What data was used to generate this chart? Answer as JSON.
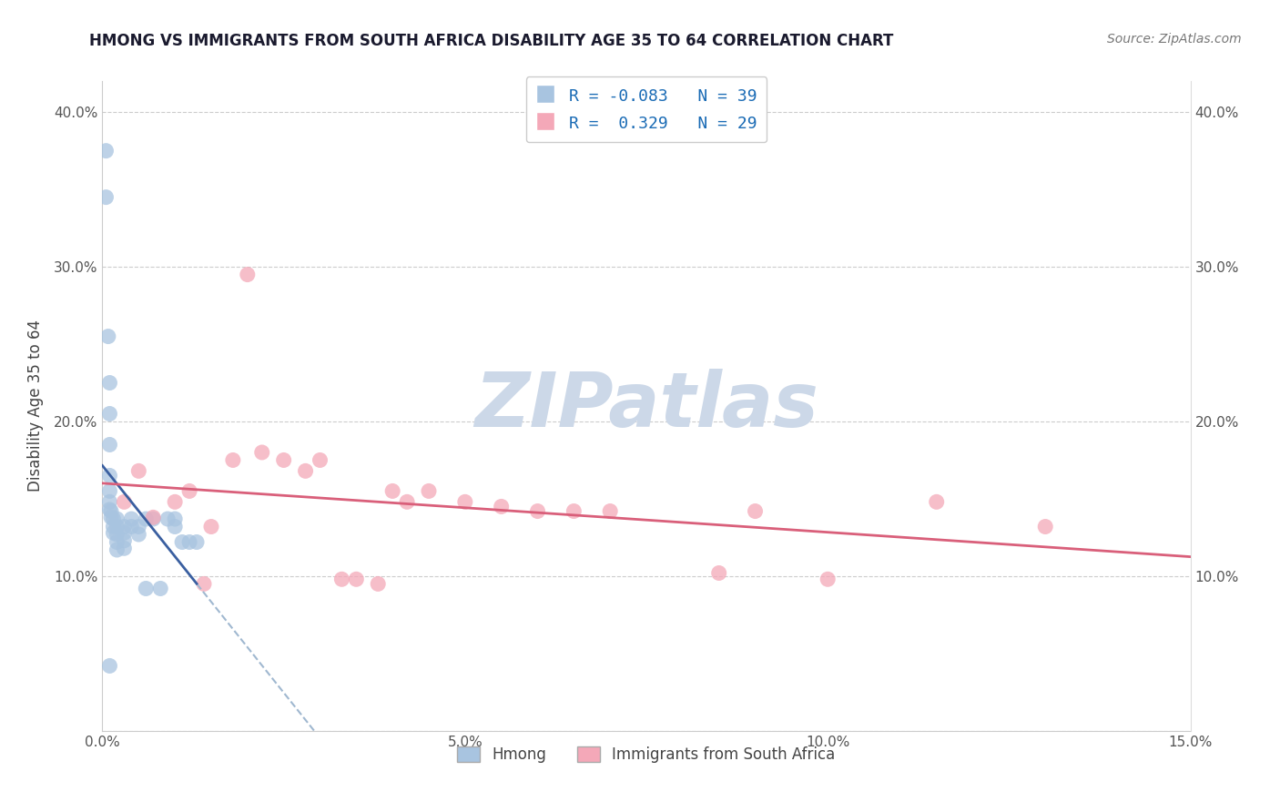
{
  "title": "HMONG VS IMMIGRANTS FROM SOUTH AFRICA DISABILITY AGE 35 TO 64 CORRELATION CHART",
  "source_text": "Source: ZipAtlas.com",
  "ylabel": "Disability Age 35 to 64",
  "xlim": [
    0.0,
    0.15
  ],
  "ylim": [
    0.0,
    0.42
  ],
  "xticks": [
    0.0,
    0.05,
    0.1,
    0.15
  ],
  "xticklabels": [
    "0.0%",
    "5.0%",
    "10.0%",
    "15.0%"
  ],
  "yticks": [
    0.0,
    0.1,
    0.2,
    0.3,
    0.4
  ],
  "yticklabels": [
    "",
    "10.0%",
    "20.0%",
    "30.0%",
    "40.0%"
  ],
  "r_hmong": -0.083,
  "n_hmong": 39,
  "r_sa": 0.329,
  "n_sa": 29,
  "legend_label1": "Hmong",
  "legend_label2": "Immigrants from South Africa",
  "hmong_color": "#a8c4e0",
  "sa_color": "#f4a8b8",
  "hmong_line_color": "#3a5fa0",
  "sa_line_color": "#d95f7a",
  "dashed_line_color": "#a0b8d0",
  "background_color": "#ffffff",
  "watermark": "ZIPatlas",
  "watermark_color": "#ccd8e8",
  "hmong_x": [
    0.0005,
    0.0005,
    0.0008,
    0.001,
    0.001,
    0.001,
    0.001,
    0.001,
    0.001,
    0.001,
    0.0012,
    0.0012,
    0.0015,
    0.0015,
    0.0015,
    0.002,
    0.002,
    0.002,
    0.002,
    0.002,
    0.003,
    0.003,
    0.003,
    0.003,
    0.004,
    0.004,
    0.005,
    0.005,
    0.006,
    0.006,
    0.007,
    0.008,
    0.009,
    0.01,
    0.01,
    0.011,
    0.012,
    0.013,
    0.001
  ],
  "hmong_y": [
    0.375,
    0.345,
    0.255,
    0.225,
    0.205,
    0.185,
    0.165,
    0.155,
    0.148,
    0.143,
    0.142,
    0.138,
    0.137,
    0.132,
    0.128,
    0.137,
    0.132,
    0.127,
    0.122,
    0.117,
    0.132,
    0.128,
    0.123,
    0.118,
    0.137,
    0.132,
    0.132,
    0.127,
    0.092,
    0.137,
    0.137,
    0.092,
    0.137,
    0.137,
    0.132,
    0.122,
    0.122,
    0.122,
    0.042
  ],
  "sa_x": [
    0.003,
    0.005,
    0.007,
    0.01,
    0.012,
    0.014,
    0.015,
    0.018,
    0.02,
    0.022,
    0.025,
    0.028,
    0.03,
    0.033,
    0.035,
    0.038,
    0.04,
    0.042,
    0.045,
    0.05,
    0.055,
    0.06,
    0.065,
    0.07,
    0.085,
    0.09,
    0.1,
    0.115,
    0.13
  ],
  "sa_y": [
    0.148,
    0.168,
    0.138,
    0.148,
    0.155,
    0.095,
    0.132,
    0.175,
    0.295,
    0.18,
    0.175,
    0.168,
    0.175,
    0.098,
    0.098,
    0.095,
    0.155,
    0.148,
    0.155,
    0.148,
    0.145,
    0.142,
    0.142,
    0.142,
    0.102,
    0.142,
    0.098,
    0.148,
    0.132
  ]
}
